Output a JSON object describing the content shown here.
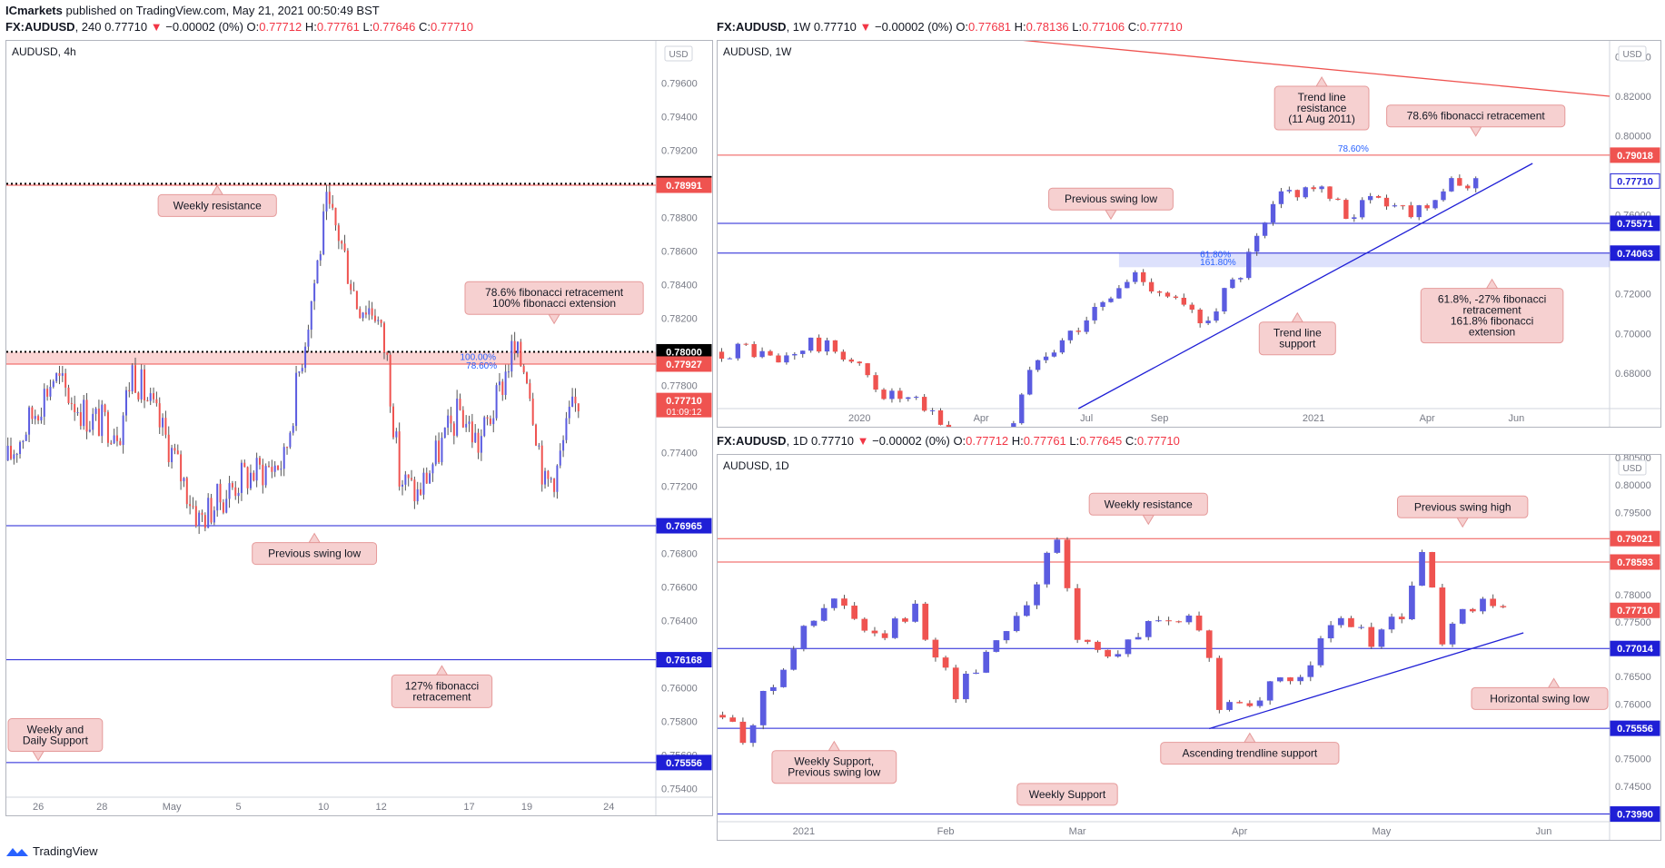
{
  "publisher": {
    "name": "ICmarkets",
    "text": "published on TradingView.com, May 21, 2021 00:50:49 BST"
  },
  "footer": {
    "brand": "TradingView"
  },
  "colors": {
    "up": "#5b5ce0",
    "down": "#ef5350",
    "blue_line": "#1f1fd6",
    "red_line": "#ef5350",
    "label_bg": "#f6d0d0",
    "label_border": "#e59a9a",
    "zone": "rgba(239,83,80,0.25)",
    "blue_zone": "rgba(100,120,240,0.22)"
  },
  "chart_data": [
    {
      "id": "4h",
      "type": "candlestick",
      "header": {
        "symbol": "FX:AUDUSD",
        "interval": "240",
        "last": "0.77710",
        "change": "−0.00002 (0%)",
        "o": "0.77712",
        "h": "0.77761",
        "l": "0.77646",
        "c": "0.77710"
      },
      "title": "AUDUSD, 4h",
      "currency": "USD",
      "ylim": [
        0.7535,
        0.7985
      ],
      "y_ticks": [
        0.796,
        0.794,
        0.792,
        0.788,
        0.786,
        0.784,
        0.782,
        0.778,
        0.774,
        0.772,
        0.768,
        0.766,
        0.764,
        0.76,
        0.758,
        0.756,
        0.754
      ],
      "tick_decimals": 5,
      "x_ticks": [
        {
          "label": "26",
          "i": 10
        },
        {
          "label": "28",
          "i": 31
        },
        {
          "label": "May",
          "i": 54
        },
        {
          "label": "5",
          "i": 76
        },
        {
          "label": "10",
          "i": 104
        },
        {
          "label": "12",
          "i": 123
        },
        {
          "label": "17",
          "i": 152
        },
        {
          "label": "19",
          "i": 171
        },
        {
          "label": "24",
          "i": 198
        }
      ],
      "n_slots": 214,
      "candles": "gen:0.7732,0.7785@16,0.7760@28,0.7755@38,0.7790@42,0.7745@54,0.7700@64,0.7725@78,0.7735@92,0.7885@106,0.7870@110,0.7830@116,0.7825@122,0.7795@126,0.7725@130,0.7715@136,0.7745@144,0.7765@150,0.7745@156,0.7770@162,0.7800@167,0.7790@172,0.7720@178,0.7730@182,0.7760@186,0.7771@189",
      "price_labels": [
        {
          "v": 0.79,
          "text": "0.79000",
          "color": "#000000"
        },
        {
          "v": 0.78991,
          "text": "0.78991",
          "color": "#ef5350"
        },
        {
          "v": 0.78,
          "text": "0.78000",
          "color": "#000000"
        },
        {
          "v": 0.77927,
          "text": "0.77927",
          "color": "#ef5350"
        },
        {
          "v": 0.7771,
          "text": "0.77710",
          "color": "#ef5350",
          "sub": "01:09:12"
        },
        {
          "v": 0.76965,
          "text": "0.76965",
          "color": "#1f1fd6"
        },
        {
          "v": 0.76168,
          "text": "0.76168",
          "color": "#1f1fd6"
        },
        {
          "v": 0.75556,
          "text": "0.75556",
          "color": "#1f1fd6"
        }
      ],
      "hlines": [
        {
          "v": 0.79,
          "color": "#000000",
          "dash": true
        },
        {
          "v": 0.78991,
          "color": "#ef5350"
        },
        {
          "v": 0.78,
          "color": "#000000",
          "dash": true
        },
        {
          "v": 0.77927,
          "color": "#ef5350"
        },
        {
          "v": 0.76965,
          "color": "#1f1fd6"
        },
        {
          "v": 0.76168,
          "color": "#1f1fd6"
        },
        {
          "v": 0.75556,
          "color": "#1f1fd6"
        }
      ],
      "zones": [
        {
          "v1": 0.78,
          "v2": 0.77927,
          "color": "zone",
          "x0": 0,
          "x1": 1
        }
      ],
      "fib_texts": [
        {
          "text": "100.00%",
          "i": 149,
          "v": 0.7795
        },
        {
          "text": "78.60%",
          "i": 151,
          "v": 0.779
        }
      ],
      "callouts": [
        {
          "text": [
            "Weekly resistance"
          ],
          "i": 69,
          "v": 0.7887,
          "arrow": "up"
        },
        {
          "text": [
            "78.6% fibonacci retracement",
            "100% fibonacci extension"
          ],
          "i": 180,
          "v": 0.7832,
          "arrow": "down"
        },
        {
          "text": [
            "Previous swing low"
          ],
          "i": 101,
          "v": 0.768,
          "arrow": "up"
        },
        {
          "text": [
            "127% fibonacci",
            "retracement"
          ],
          "i": 143,
          "v": 0.7598,
          "arrow": "up"
        },
        {
          "text": [
            "Weekly and",
            "Daily Support"
          ],
          "i": 10,
          "v": 0.7572,
          "arrow": "down"
        }
      ]
    },
    {
      "id": "1w",
      "type": "candlestick",
      "header": {
        "symbol": "FX:AUDUSD",
        "interval": "1W",
        "last": "0.77710",
        "change": "−0.00002 (0%)",
        "o": "0.77681",
        "h": "0.78136",
        "l": "0.77106",
        "c": "0.77710"
      },
      "title": "AUDUSD, 1W",
      "currency": "USD",
      "ylim": [
        0.662,
        0.848
      ],
      "y_ticks": [
        0.84,
        0.82,
        0.8,
        0.76,
        0.72,
        0.7,
        0.68
      ],
      "tick_decimals": 5,
      "x_ticks": [
        {
          "label": "2020",
          "i": 17
        },
        {
          "label": "Apr",
          "i": 32
        },
        {
          "label": "Jul",
          "i": 45
        },
        {
          "label": "Sep",
          "i": 54
        },
        {
          "label": "2021",
          "i": 73
        },
        {
          "label": "Apr",
          "i": 87
        },
        {
          "label": "Jun",
          "i": 98
        }
      ],
      "n_slots": 110,
      "candles": "gen:0.690,0.693@4,0.685@8,0.695@12,0.690@16,0.670@21,0.664@25,0.650@30,0.645@36,0.690@40,0.700@44,0.715@48,0.730@52,0.720@56,0.705@60,0.730@65,0.770@70,0.775@74,0.760@78,0.770@82,0.762@86,0.773@90,0.777@94",
      "price_labels": [
        {
          "v": 0.79018,
          "text": "0.79018",
          "color": "#ef5350"
        },
        {
          "v": 0.7771,
          "text": "0.77710",
          "color": "#1f1fd6",
          "outline": true
        },
        {
          "v": 0.75571,
          "text": "0.75571",
          "color": "#1f1fd6"
        },
        {
          "v": 0.74063,
          "text": "0.74063",
          "color": "#1f1fd6"
        }
      ],
      "hlines": [
        {
          "v": 0.79018,
          "color": "#ef5350"
        },
        {
          "v": 0.75571,
          "color": "#1f1fd6"
        },
        {
          "v": 0.74063,
          "color": "#1f1fd6"
        }
      ],
      "zones": [
        {
          "v1": 0.7406,
          "v2": 0.7335,
          "color": "blue_zone",
          "x0": 0.45,
          "x1": 1
        }
      ],
      "trend": [
        {
          "i1": 44,
          "v1": 0.662,
          "i2": 100,
          "v2": 0.786,
          "color": "#1f1fd6"
        },
        {
          "i1": 20,
          "v1": 0.855,
          "i2": 110,
          "v2": 0.82,
          "color": "#ef5350"
        }
      ],
      "fib_texts": [
        {
          "text": "78.60%",
          "i": 76,
          "v": 0.792
        },
        {
          "text": "61.80%",
          "i": 59,
          "v": 0.7385
        },
        {
          "text": "161.80%",
          "i": 59,
          "v": 0.7345
        }
      ],
      "callouts": [
        {
          "text": [
            "Trend line",
            "resistance",
            "(11 Aug 2011)"
          ],
          "i": 74,
          "v": 0.814,
          "arrow": "up"
        },
        {
          "text": [
            "78.6% fibonacci retracement"
          ],
          "i": 93,
          "v": 0.81,
          "arrow": "down"
        },
        {
          "text": [
            "Previous swing low"
          ],
          "i": 48,
          "v": 0.768,
          "arrow": "down"
        },
        {
          "text": [
            "61.8%, -27% fibonacci",
            "retracement",
            "161.8% fibonacci",
            "extension"
          ],
          "i": 95,
          "v": 0.709,
          "arrow": "up"
        },
        {
          "text": [
            "Trend line",
            "support"
          ],
          "i": 71,
          "v": 0.6975,
          "arrow": "up"
        }
      ]
    },
    {
      "id": "1d",
      "type": "candlestick",
      "header": {
        "symbol": "FX:AUDUSD",
        "interval": "1D",
        "last": "0.77710",
        "change": "−0.00002 (0%)",
        "o": "0.77712",
        "h": "0.77761",
        "l": "0.77645",
        "c": "0.77710"
      },
      "title": "AUDUSD, 1D",
      "currency": "USD",
      "ylim": [
        0.7385,
        0.8055
      ],
      "y_ticks": [
        0.805,
        0.8,
        0.795,
        0.79,
        0.78,
        0.775,
        0.765,
        0.76,
        0.75,
        0.745,
        0.74
      ],
      "tick_decimals": 5,
      "x_ticks": [
        {
          "label": "2021",
          "i": 8
        },
        {
          "label": "Feb",
          "i": 22
        },
        {
          "label": "Mar",
          "i": 35
        },
        {
          "label": "Apr",
          "i": 51
        },
        {
          "label": "May",
          "i": 65
        },
        {
          "label": "Jun",
          "i": 81
        }
      ],
      "n_slots": 88,
      "candles": "gen:0.7600,0.7540@3,0.7710@8,0.7790@12,0.7715@16,0.7770@20,0.7620@24,0.7720@28,0.7790@31,0.7900@34,0.7720@36,0.7690@40,0.7760@44,0.7740@48,0.7600@50,0.7610@53,0.7640@57,0.7750@62,0.7720@65,0.7760@68,0.7880@70,0.7720@72,0.7780@75,0.7771@78",
      "price_labels": [
        {
          "v": 0.79021,
          "text": "0.79021",
          "color": "#ef5350"
        },
        {
          "v": 0.78593,
          "text": "0.78593",
          "color": "#ef5350"
        },
        {
          "v": 0.7771,
          "text": "0.77710",
          "color": "#ef5350"
        },
        {
          "v": 0.77014,
          "text": "0.77014",
          "color": "#1f1fd6"
        },
        {
          "v": 0.75556,
          "text": "0.75556",
          "color": "#1f1fd6"
        },
        {
          "v": 0.7399,
          "text": "0.73990",
          "color": "#1f1fd6"
        }
      ],
      "hlines": [
        {
          "v": 0.79021,
          "color": "#ef5350"
        },
        {
          "v": 0.78593,
          "color": "#ef5350"
        },
        {
          "v": 0.77014,
          "color": "#1f1fd6"
        },
        {
          "v": 0.75556,
          "color": "#1f1fd6"
        },
        {
          "v": 0.7399,
          "color": "#1f1fd6"
        }
      ],
      "zones": [],
      "trend": [
        {
          "i1": 48,
          "v1": 0.7555,
          "i2": 79,
          "v2": 0.773,
          "color": "#1f1fd6"
        }
      ],
      "fib_texts": [],
      "callouts": [
        {
          "text": [
            "Weekly resistance"
          ],
          "i": 42,
          "v": 0.7965,
          "arrow": "down"
        },
        {
          "text": [
            "Previous swing high"
          ],
          "i": 73,
          "v": 0.796,
          "arrow": "down"
        },
        {
          "text": [
            "Horizontal swing low"
          ],
          "i": 82,
          "v": 0.761,
          "arrow": "up"
        },
        {
          "text": [
            "Weekly Support,",
            "Previous swing low"
          ],
          "i": 11,
          "v": 0.7485,
          "arrow": "up"
        },
        {
          "text": [
            "Ascending trendline support"
          ],
          "i": 52,
          "v": 0.751,
          "arrow": "up"
        },
        {
          "text": [
            "Weekly Support"
          ],
          "i": 34,
          "v": 0.7435,
          "arrow": "none"
        }
      ]
    }
  ]
}
